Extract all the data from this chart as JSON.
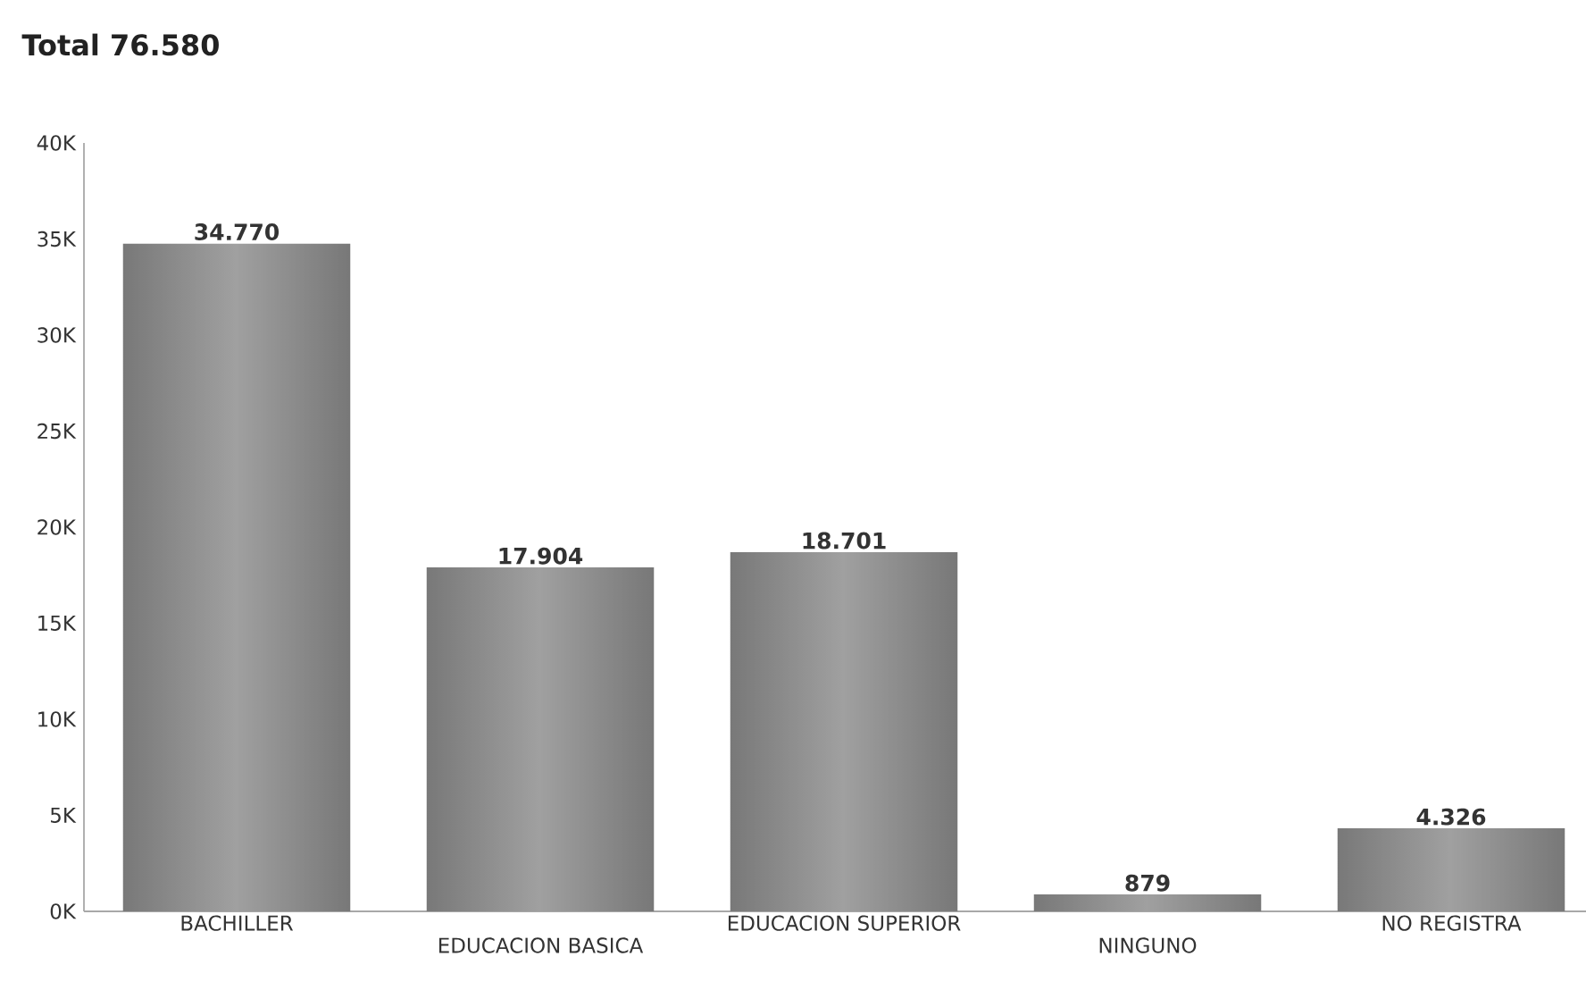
{
  "chart_data": {
    "type": "bar",
    "title": "Total 76.580",
    "categories": [
      "BACHILLER",
      "EDUCACION BASICA",
      "EDUCACION SUPERIOR",
      "NINGUNO",
      "NO REGISTRA"
    ],
    "values": [
      34770,
      17904,
      18701,
      879,
      4326
    ],
    "value_labels": [
      "34.770",
      "17.904",
      "18.701",
      "879",
      "4.326"
    ],
    "color": "#a0a0a0",
    "ylim": [
      0,
      40000
    ],
    "yticks": [
      {
        "value": 0,
        "label": "0K"
      },
      {
        "value": 5000,
        "label": "5K"
      },
      {
        "value": 10000,
        "label": "10K"
      },
      {
        "value": 15000,
        "label": "15K"
      },
      {
        "value": 20000,
        "label": "20K"
      },
      {
        "value": 25000,
        "label": "25K"
      },
      {
        "value": 30000,
        "label": "30K"
      },
      {
        "value": 35000,
        "label": "35K"
      },
      {
        "value": 40000,
        "label": "40K"
      }
    ]
  }
}
